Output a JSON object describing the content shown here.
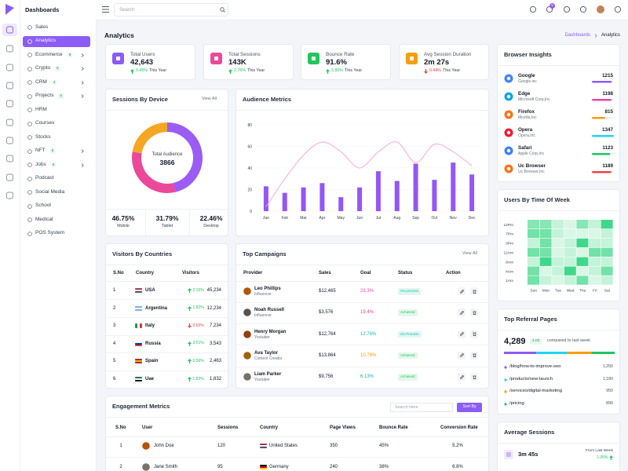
{
  "sidebar": {
    "brand": "Dashboards",
    "items": [
      {
        "label": "Sales"
      },
      {
        "label": "Analytics",
        "active": true
      },
      {
        "label": "Ecommerce",
        "badge": "8",
        "submenu": true
      },
      {
        "label": "Crypto",
        "badge": "6",
        "submenu": true
      },
      {
        "label": "CRM",
        "badge": "4",
        "submenu": true
      },
      {
        "label": "Projects",
        "badge": "6",
        "submenu": true
      },
      {
        "label": "HRM"
      },
      {
        "label": "Courses"
      },
      {
        "label": "Stocks"
      },
      {
        "label": "NFT",
        "badge": "5",
        "submenu": true
      },
      {
        "label": "Jobs",
        "badge": "6",
        "submenu": true
      },
      {
        "label": "Podcast"
      },
      {
        "label": "Social Media"
      },
      {
        "label": "School"
      },
      {
        "label": "Medical"
      },
      {
        "label": "POS System"
      }
    ]
  },
  "header": {
    "search_placeholder": "Search",
    "cart_badge": "5"
  },
  "page": {
    "title": "Analytics",
    "breadcrumb": [
      "Dashboards",
      "Analytics"
    ]
  },
  "stats": [
    {
      "label": "Total Users",
      "value": "42,643",
      "change": "0.45%",
      "trend": "up",
      "period": "This Year",
      "color": "#8b5cf6"
    },
    {
      "label": "Total Sessions",
      "value": "143K",
      "change": "2.76%",
      "trend": "up",
      "period": "This Year",
      "color": "#ec4899"
    },
    {
      "label": "Bounce Rate",
      "value": "91.6%",
      "change": "3.85%",
      "trend": "up",
      "period": "This Year",
      "color": "#22c55e"
    },
    {
      "label": "Avg Session Duration",
      "value": "2m 27s",
      "change": "0.44%",
      "trend": "down",
      "period": "This Year",
      "color": "#f59e0b"
    }
  ],
  "sessions_by_device": {
    "title": "Sessions By Device",
    "action": "View All",
    "center_label": "Total Audience",
    "center_value": "3866",
    "segments": [
      {
        "name": "Mobile",
        "value": 46.75,
        "value_label": "46.75%",
        "color": "#9b5cf6"
      },
      {
        "name": "Tablet",
        "value": 31.79,
        "value_label": "31.79%",
        "color": "#ec4899"
      },
      {
        "name": "Desktop",
        "value": 22.46,
        "value_label": "22.46%",
        "color": "#f5a623"
      }
    ]
  },
  "audience_metrics": {
    "title": "Audience Metrics",
    "categories": [
      "Jan",
      "Feb",
      "Mar",
      "Apr",
      "May",
      "Jun",
      "Jul",
      "Aug",
      "Sep",
      "Oct",
      "Nov",
      "Dec"
    ],
    "bars": {
      "color": "#9457f5",
      "values": [
        23,
        17,
        22,
        26,
        13,
        22,
        37,
        28,
        44,
        29,
        45,
        34
      ]
    },
    "line": {
      "color": "#f9a8d4",
      "values": [
        4,
        30,
        52,
        64,
        55,
        40,
        55,
        64,
        45,
        62,
        55,
        42
      ]
    },
    "ylim": [
      0,
      80
    ],
    "yticks": [
      0,
      20,
      40,
      60,
      80
    ],
    "grid": true
  },
  "visitors": {
    "title": "Visitors By Countries",
    "columns": [
      "S.No",
      "Country",
      "Visitors"
    ],
    "rows": [
      {
        "sno": "1",
        "country": "USA",
        "change": "2.15%",
        "trend": "up",
        "visitors": "45,234",
        "flag": [
          "#b22234",
          "#ffffff",
          "#3c3b6e"
        ]
      },
      {
        "sno": "2",
        "country": "Argentina",
        "change": "1.82%",
        "trend": "up",
        "visitors": "12,234",
        "flag": [
          "#74acdf",
          "#ffffff",
          "#74acdf"
        ]
      },
      {
        "sno": "3",
        "country": "Italy",
        "change": "0.65%",
        "trend": "down",
        "visitors": "7,234",
        "flag": [
          "#009246",
          "#ffffff",
          "#ce2b37"
        ],
        "flag_vertical": true
      },
      {
        "sno": "4",
        "country": "Russia",
        "change": "3.51%",
        "trend": "up",
        "visitors": "3,543",
        "flag": [
          "#ffffff",
          "#0039a6",
          "#d52b1e"
        ]
      },
      {
        "sno": "5",
        "country": "Spain",
        "change": "0.56%",
        "trend": "up",
        "visitors": "2,463",
        "flag": [
          "#aa151b",
          "#f1bf00",
          "#aa151b"
        ]
      },
      {
        "sno": "6",
        "country": "Uae",
        "change": "1.82%",
        "trend": "up",
        "visitors": "1,832",
        "flag": [
          "#00732f",
          "#ffffff",
          "#000000"
        ]
      }
    ]
  },
  "campaigns": {
    "title": "Top Campaigns",
    "action": "View All",
    "columns": [
      "Provider",
      "Sales",
      "Goal",
      "Status",
      "Action"
    ],
    "rows": [
      {
        "name": "Leo Phillips",
        "role": "Influencer",
        "sales": "$12,465",
        "goal": "23.3%",
        "goal_color": "#ec4899",
        "status": "On process",
        "status_color": "#14b8a6"
      },
      {
        "name": "Noah Russell",
        "role": "Influencer",
        "sales": "$3,576",
        "goal": "19.4%",
        "goal_color": "#ec4899",
        "status": "Achieved",
        "status_color": "#22c55e"
      },
      {
        "name": "Henry Morgan",
        "role": "Youtuber",
        "sales": "$12,764",
        "goal": "12.76%",
        "goal_color": "#14b8a6",
        "status": "On Process",
        "status_color": "#14b8a6"
      },
      {
        "name": "Ava Taylor",
        "role": "Content Creator",
        "sales": "$13,864",
        "goal": "10.78%",
        "goal_color": "#f59e0b",
        "status": "Achieved",
        "status_color": "#22c55e"
      },
      {
        "name": "Liam Parker",
        "role": "Youtuber",
        "sales": "$9,756",
        "goal": "6.13%",
        "goal_color": "#14b8a6",
        "status": "Achieved",
        "status_color": "#22c55e"
      }
    ]
  },
  "engagement": {
    "title": "Engagement Metrics",
    "search_placeholder": "Search Here",
    "sort": "Sort By",
    "columns": [
      "S.No",
      "User",
      "Sessions",
      "Country",
      "Page Views",
      "Bounce Rate",
      "Conversion Rate"
    ],
    "rows": [
      {
        "sno": "1",
        "user": "John Doe",
        "sessions": "120",
        "country": "United States",
        "flag": [
          "#b22234",
          "#ffffff",
          "#3c3b6e"
        ],
        "page_views": "350",
        "bounce": "45%",
        "conversion": "5.2%"
      },
      {
        "sno": "2",
        "user": "Jane Smith",
        "sessions": "95",
        "country": "Germany",
        "flag": [
          "#000000",
          "#dd0000",
          "#ffce00"
        ],
        "page_views": "240",
        "bounce": "38%",
        "conversion": "6.8%"
      }
    ]
  },
  "browsers": {
    "title": "Browser Insights",
    "items": [
      {
        "name": "Google",
        "company": "Google.inc",
        "value": 1215,
        "color": "#8b5cf6",
        "icon_color": "#4285f4"
      },
      {
        "name": "Edge",
        "company": "Microsoft Corp,Inc",
        "value": 1198,
        "color": "#ec4899",
        "icon_color": "#0ea5e9"
      },
      {
        "name": "Firefox",
        "company": "Mozilla,Inc",
        "value": 815,
        "color": "#f59e0b",
        "icon_color": "#f97316"
      },
      {
        "name": "Opera",
        "company": "Opera,Inc",
        "value": 1347,
        "color": "#22d3ee",
        "icon_color": "#ef1b2d"
      },
      {
        "name": "Safari",
        "company": "Apple Corp,Inc",
        "value": 1123,
        "color": "#22c55e",
        "icon_color": "#3b82f6"
      },
      {
        "name": "Uc Browser",
        "company": "Uc Browser,Inc",
        "value": 1189,
        "color": "#ef4444",
        "icon_color": "#f97316"
      }
    ]
  },
  "heatmap": {
    "title": "Users By Time Of Week",
    "rows": [
      "12Pm",
      "7Pm",
      "3Pm",
      "12Am",
      "8Am",
      "4Am",
      "1Am"
    ],
    "columns": [
      "Sun",
      "Mon",
      "Tue",
      "Wed",
      "Thu",
      "Fri",
      "Sat"
    ],
    "values": [
      [
        50,
        50,
        20,
        10,
        50,
        20,
        85
      ],
      [
        60,
        60,
        20,
        10,
        10,
        10,
        20
      ],
      [
        20,
        60,
        10,
        20,
        85,
        20,
        20
      ],
      [
        60,
        60,
        10,
        20,
        10,
        60,
        60
      ],
      [
        20,
        85,
        20,
        20,
        85,
        20,
        20
      ],
      [
        60,
        10,
        20,
        85,
        10,
        20,
        60
      ],
      [
        60,
        20,
        10,
        20,
        60,
        10,
        20
      ]
    ],
    "color_range": [
      "#ecfbf1",
      "#3fd88a"
    ]
  },
  "referral": {
    "title": "Top Referral Pages",
    "total": "4,289",
    "badge": "1.02",
    "compare": "compared to last week",
    "pages": [
      {
        "path": "/blog/how-to-improve-seo",
        "value": 1250,
        "value_label": "1,250",
        "color": "#8b5cf6"
      },
      {
        "path": "/products/new-launch",
        "value": 1180,
        "value_label": "1,180",
        "color": "#22d3ee"
      },
      {
        "path": "/services/digital-marketing",
        "value": 950,
        "value_label": "950",
        "color": "#f59e0b"
      },
      {
        "path": "/pricing",
        "value": 890,
        "value_label": "890",
        "color": "#22c55e"
      }
    ]
  },
  "avg_sessions": {
    "title": "Average Sessions",
    "value": "3m 45s",
    "from": "From Last Week",
    "change": "1.05%"
  }
}
